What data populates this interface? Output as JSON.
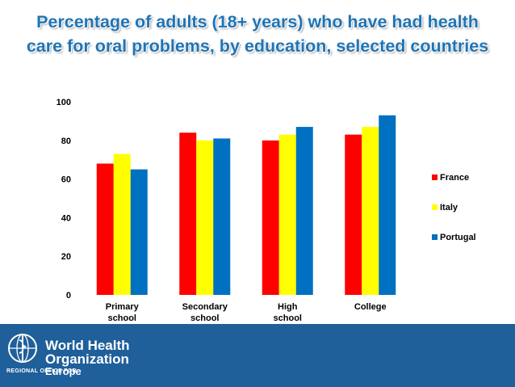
{
  "header": {
    "title_line1": "Percentage of adults (18+ years) who have had health",
    "title_line2": "care for  oral problems, by education, selected countries"
  },
  "chart_data": {
    "type": "bar",
    "title": "Percentage of adults (18+ years) who have had health care for  oral problems, by education, selected countries",
    "categories": [
      [
        "Primary",
        "school"
      ],
      [
        "Secondary",
        "school"
      ],
      [
        "High",
        "school"
      ],
      [
        "College"
      ]
    ],
    "series": [
      {
        "name": "France",
        "color": "#ff0000",
        "values": [
          68,
          84,
          80,
          83
        ]
      },
      {
        "name": "Italy",
        "color": "#ffff00",
        "values": [
          73,
          80,
          83,
          87
        ]
      },
      {
        "name": "Portugal",
        "color": "#0070c0",
        "values": [
          65,
          81,
          87,
          93
        ]
      }
    ],
    "ylim": [
      0,
      100
    ],
    "yticks": [
      0,
      20,
      40,
      60,
      80,
      100
    ],
    "xlabel": "",
    "ylabel": "",
    "legend_position": "right"
  },
  "footer": {
    "org_line1": "World Health",
    "org_line2": "Organization",
    "region_prefix": "REGIONAL OFFICE FOR",
    "region_name": "Europe"
  }
}
